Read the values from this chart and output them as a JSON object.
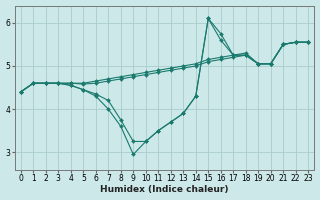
{
  "xlabel": "Humidex (Indice chaleur)",
  "bg_color": "#cce8e8",
  "grid_color": "#aacccc",
  "line_color": "#1a7a6e",
  "xlim": [
    -0.5,
    23.5
  ],
  "ylim": [
    2.6,
    6.4
  ],
  "yticks": [
    3,
    4,
    5,
    6
  ],
  "xticks": [
    0,
    1,
    2,
    3,
    4,
    5,
    6,
    7,
    8,
    9,
    10,
    11,
    12,
    13,
    14,
    15,
    16,
    17,
    18,
    19,
    20,
    21,
    22,
    23
  ],
  "lines": [
    {
      "x": [
        0,
        1,
        2,
        3,
        4,
        5,
        6,
        7,
        8,
        9,
        10,
        11,
        12,
        13,
        14,
        15,
        16,
        17,
        18,
        19,
        20,
        21,
        22,
        23
      ],
      "y": [
        4.4,
        4.6,
        4.6,
        4.6,
        4.6,
        4.6,
        4.65,
        4.7,
        4.75,
        4.8,
        4.85,
        4.9,
        4.95,
        5.0,
        5.05,
        5.15,
        5.2,
        5.25,
        5.3,
        5.05,
        5.05,
        5.5,
        5.55,
        5.55
      ]
    },
    {
      "x": [
        0,
        1,
        2,
        3,
        4,
        5,
        6,
        7,
        8,
        9,
        10,
        11,
        12,
        13,
        14,
        15,
        16,
        17,
        18,
        19,
        20,
        21,
        22,
        23
      ],
      "y": [
        4.4,
        4.6,
        4.6,
        4.6,
        4.6,
        4.58,
        4.6,
        4.65,
        4.7,
        4.75,
        4.8,
        4.85,
        4.9,
        4.95,
        5.0,
        5.1,
        5.15,
        5.2,
        5.25,
        5.05,
        5.05,
        5.5,
        5.55,
        5.55
      ]
    },
    {
      "x": [
        0,
        1,
        2,
        3,
        4,
        5,
        6,
        7,
        8,
        9,
        10,
        11,
        12,
        13,
        14,
        15,
        16,
        17,
        18,
        19,
        20,
        21,
        22,
        23
      ],
      "y": [
        4.4,
        4.6,
        4.6,
        4.6,
        4.55,
        4.45,
        4.35,
        4.2,
        3.75,
        3.25,
        3.25,
        3.5,
        3.7,
        3.9,
        4.3,
        6.1,
        5.75,
        5.25,
        5.25,
        5.05,
        5.05,
        5.5,
        5.55,
        5.55
      ]
    },
    {
      "x": [
        0,
        1,
        2,
        3,
        4,
        5,
        6,
        7,
        8,
        9,
        10,
        11,
        12,
        13,
        14,
        15,
        16,
        17,
        18,
        19,
        20,
        21,
        22,
        23
      ],
      "y": [
        4.4,
        4.6,
        4.6,
        4.6,
        4.55,
        4.45,
        4.3,
        4.0,
        3.6,
        2.95,
        3.25,
        3.5,
        3.7,
        3.9,
        4.3,
        6.1,
        5.6,
        5.25,
        5.25,
        5.05,
        5.05,
        5.5,
        5.55,
        5.55
      ]
    }
  ]
}
